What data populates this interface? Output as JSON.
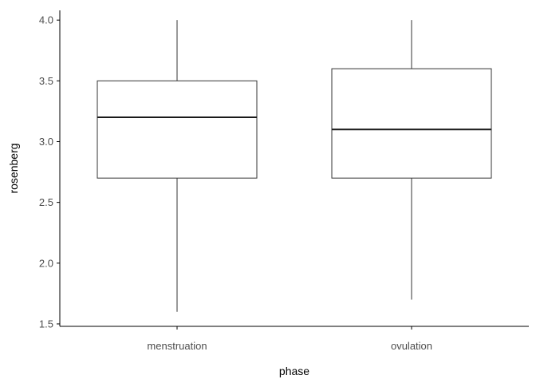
{
  "chart_data": {
    "type": "boxplot",
    "title": "",
    "xlabel": "phase",
    "ylabel": "rosenberg",
    "categories": [
      "menstruation",
      "ovulation"
    ],
    "boxes": [
      {
        "category": "menstruation",
        "whisker_low": 1.6,
        "q1": 2.7,
        "median": 3.2,
        "q3": 3.5,
        "whisker_high": 4.0
      },
      {
        "category": "ovulation",
        "whisker_low": 1.7,
        "q1": 2.7,
        "median": 3.1,
        "q3": 3.6,
        "whisker_high": 4.0
      }
    ],
    "ylim": [
      1.48,
      4.08
    ],
    "yticks": [
      1.5,
      2.0,
      2.5,
      3.0,
      3.5,
      4.0
    ],
    "ytick_labels": [
      "1.5",
      "2.0",
      "2.5",
      "3.0",
      "3.5",
      "4.0"
    ],
    "grid": false,
    "legend": "none",
    "colors": {
      "box_fill": "#ffffff",
      "box_stroke": "#333333",
      "median": "#1a1a1a",
      "axis": "#000000",
      "tick_text": "#4d4d4d",
      "title_text": "#000000"
    }
  }
}
